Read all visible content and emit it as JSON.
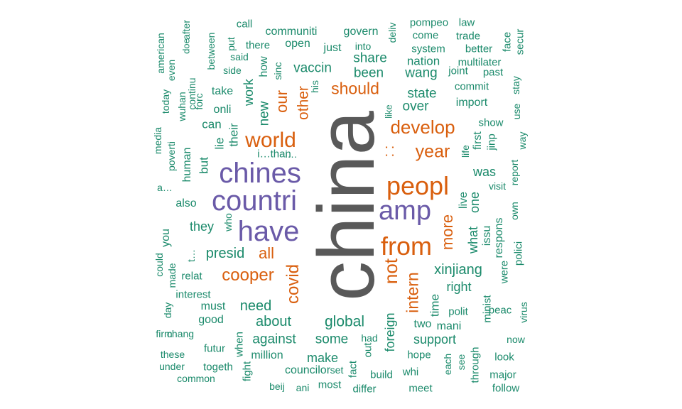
{
  "colors": {
    "tier1": "#595959",
    "tier2": "#6A5AA8",
    "tier3": "#D95F0E",
    "tier4": "#1B8A6B"
  },
  "words": [
    {
      "text": "china",
      "color": "tier1"
    },
    {
      "text": "chines",
      "color": "tier2"
    },
    {
      "text": "countri",
      "color": "tier2"
    },
    {
      "text": "have",
      "color": "tier2"
    },
    {
      "text": "amp",
      "color": "tier2"
    },
    {
      "text": "peopl",
      "color": "tier3"
    },
    {
      "text": "from",
      "color": "tier3"
    },
    {
      "text": "world",
      "color": "tier3"
    },
    {
      "text": "develop",
      "color": "tier3"
    },
    {
      "text": "year",
      "color": "tier3"
    },
    {
      "text": "should",
      "color": "tier3"
    },
    {
      "text": "covid",
      "color": "tier3"
    },
    {
      "text": "cooper",
      "color": "tier3"
    },
    {
      "text": "not",
      "color": "tier3"
    },
    {
      "text": "intern",
      "color": "tier3"
    },
    {
      "text": "more",
      "color": "tier3"
    },
    {
      "text": "our",
      "color": "tier3"
    },
    {
      "text": "other",
      "color": "tier3"
    },
    {
      "text": "all",
      "color": "tier3"
    },
    {
      "text": ": :",
      "color": "tier3"
    },
    {
      "text": "foreign",
      "color": "tier4"
    },
    {
      "text": "xinjiang",
      "color": "tier4"
    },
    {
      "text": "global",
      "color": "tier4"
    },
    {
      "text": "presid",
      "color": "tier4"
    },
    {
      "text": "about",
      "color": "tier4"
    },
    {
      "text": "need",
      "color": "tier4"
    },
    {
      "text": "against",
      "color": "tier4"
    },
    {
      "text": "some",
      "color": "tier4"
    },
    {
      "text": "make",
      "color": "tier4"
    },
    {
      "text": "support",
      "color": "tier4"
    },
    {
      "text": "state",
      "color": "tier4"
    },
    {
      "text": "over",
      "color": "tier4"
    },
    {
      "text": "vaccin",
      "color": "tier4"
    },
    {
      "text": "been",
      "color": "tier4"
    },
    {
      "text": "share",
      "color": "tier4"
    },
    {
      "text": "wang",
      "color": "tier4"
    },
    {
      "text": "nation",
      "color": "tier4"
    },
    {
      "text": "right",
      "color": "tier4"
    },
    {
      "text": "what",
      "color": "tier4"
    },
    {
      "text": "one",
      "color": "tier4"
    },
    {
      "text": "was",
      "color": "tier4"
    },
    {
      "text": "they",
      "color": "tier4"
    },
    {
      "text": "new",
      "color": "tier4"
    },
    {
      "text": "work",
      "color": "tier4"
    },
    {
      "text": "their",
      "color": "tier4"
    },
    {
      "text": "can",
      "color": "tier4"
    },
    {
      "text": "but",
      "color": "tier4"
    },
    {
      "text": "lie",
      "color": "tier4"
    },
    {
      "text": "onli",
      "color": "tier4"
    },
    {
      "text": "take",
      "color": "tier4"
    },
    {
      "text": "how",
      "color": "tier4"
    },
    {
      "text": "open",
      "color": "tier4"
    },
    {
      "text": "just",
      "color": "tier4"
    },
    {
      "text": "time",
      "color": "tier4"
    },
    {
      "text": "two",
      "color": "tier4"
    },
    {
      "text": "mani",
      "color": "tier4"
    },
    {
      "text": "polit",
      "color": "tier4"
    },
    {
      "text": "respons",
      "color": "tier4"
    },
    {
      "text": "issu",
      "color": "tier4"
    },
    {
      "text": "live",
      "color": "tier4"
    },
    {
      "text": "first",
      "color": "tier4"
    },
    {
      "text": "jinp",
      "color": "tier4"
    },
    {
      "text": "import",
      "color": "tier4"
    },
    {
      "text": "commit",
      "color": "tier4"
    },
    {
      "text": "joint",
      "color": "tier4"
    },
    {
      "text": "show",
      "color": "tier4"
    },
    {
      "text": "visit",
      "color": "tier4"
    },
    {
      "text": "report",
      "color": "tier4"
    },
    {
      "text": "way",
      "color": "tier4"
    },
    {
      "text": "life",
      "color": "tier4"
    },
    {
      "text": "minist",
      "color": "tier4"
    },
    {
      "text": "peac",
      "color": "tier4"
    },
    {
      "text": "were",
      "color": "tier4"
    },
    {
      "text": "polici",
      "color": "tier4"
    },
    {
      "text": "own",
      "color": "tier4"
    },
    {
      "text": "virus",
      "color": "tier4"
    },
    {
      "text": "now",
      "color": "tier4"
    },
    {
      "text": "look",
      "color": "tier4"
    },
    {
      "text": "major",
      "color": "tier4"
    },
    {
      "text": "follow",
      "color": "tier4"
    },
    {
      "text": "through",
      "color": "tier4"
    },
    {
      "text": "see",
      "color": "tier4"
    },
    {
      "text": "each",
      "color": "tier4"
    },
    {
      "text": "hope",
      "color": "tier4"
    },
    {
      "text": "whi",
      "color": "tier4"
    },
    {
      "text": "meet",
      "color": "tier4"
    },
    {
      "text": "build",
      "color": "tier4"
    },
    {
      "text": "differ",
      "color": "tier4"
    },
    {
      "text": "fact",
      "color": "tier4"
    },
    {
      "text": "out",
      "color": "tier4"
    },
    {
      "text": "had",
      "color": "tier4"
    },
    {
      "text": "most",
      "color": "tier4"
    },
    {
      "text": "set",
      "color": "tier4"
    },
    {
      "text": "councilor",
      "color": "tier4"
    },
    {
      "text": "ani",
      "color": "tier4"
    },
    {
      "text": "beij",
      "color": "tier4"
    },
    {
      "text": "million",
      "color": "tier4"
    },
    {
      "text": "fight",
      "color": "tier4"
    },
    {
      "text": "when",
      "color": "tier4"
    },
    {
      "text": "togeth",
      "color": "tier4"
    },
    {
      "text": "futur",
      "color": "tier4"
    },
    {
      "text": "common",
      "color": "tier4"
    },
    {
      "text": "under",
      "color": "tier4"
    },
    {
      "text": "these",
      "color": "tier4"
    },
    {
      "text": "firm",
      "color": "tier4"
    },
    {
      "text": "chang",
      "color": "tier4"
    },
    {
      "text": "good",
      "color": "tier4"
    },
    {
      "text": "must",
      "color": "tier4"
    },
    {
      "text": "day",
      "color": "tier4"
    },
    {
      "text": "interest",
      "color": "tier4"
    },
    {
      "text": "relat",
      "color": "tier4"
    },
    {
      "text": "made",
      "color": "tier4"
    },
    {
      "text": "could",
      "color": "tier4"
    },
    {
      "text": "you",
      "color": "tier4"
    },
    {
      "text": "also",
      "color": "tier4"
    },
    {
      "text": "who",
      "color": "tier4"
    },
    {
      "text": "a…",
      "color": "tier4"
    },
    {
      "text": "human",
      "color": "tier4"
    },
    {
      "text": "poverti",
      "color": "tier4"
    },
    {
      "text": "media",
      "color": "tier4"
    },
    {
      "text": "i…than",
      "color": "tier4"
    },
    {
      "text": "today",
      "color": "tier4"
    },
    {
      "text": "wuhan",
      "color": "tier4"
    },
    {
      "text": "american",
      "color": "tier4"
    },
    {
      "text": "even",
      "color": "tier4"
    },
    {
      "text": "continu",
      "color": "tier4"
    },
    {
      "text": "doe",
      "color": "tier4"
    },
    {
      "text": "forc",
      "color": "tier4"
    },
    {
      "text": "after",
      "color": "tier4"
    },
    {
      "text": "between",
      "color": "tier4"
    },
    {
      "text": "put",
      "color": "tier4"
    },
    {
      "text": "said",
      "color": "tier4"
    },
    {
      "text": "side",
      "color": "tier4"
    },
    {
      "text": "call",
      "color": "tier4"
    },
    {
      "text": "there",
      "color": "tier4"
    },
    {
      "text": "communiti",
      "color": "tier4"
    },
    {
      "text": "sinc",
      "color": "tier4"
    },
    {
      "text": "his",
      "color": "tier4"
    },
    {
      "text": "govern",
      "color": "tier4"
    },
    {
      "text": "into",
      "color": "tier4"
    },
    {
      "text": "deliv",
      "color": "tier4"
    },
    {
      "text": "pompeo",
      "color": "tier4"
    },
    {
      "text": "come",
      "color": "tier4"
    },
    {
      "text": "system",
      "color": "tier4"
    },
    {
      "text": "law",
      "color": "tier4"
    },
    {
      "text": "trade",
      "color": "tier4"
    },
    {
      "text": "better",
      "color": "tier4"
    },
    {
      "text": "multilater",
      "color": "tier4"
    },
    {
      "text": "past",
      "color": "tier4"
    },
    {
      "text": "face",
      "color": "tier4"
    },
    {
      "text": "secur",
      "color": "tier4"
    },
    {
      "text": "stay",
      "color": "tier4"
    },
    {
      "text": "use",
      "color": "tier4"
    },
    {
      "text": "like",
      "color": "tier4"
    },
    {
      "text": "t…",
      "color": "tier4"
    },
    {
      "text": "i…",
      "color": "tier4"
    }
  ]
}
